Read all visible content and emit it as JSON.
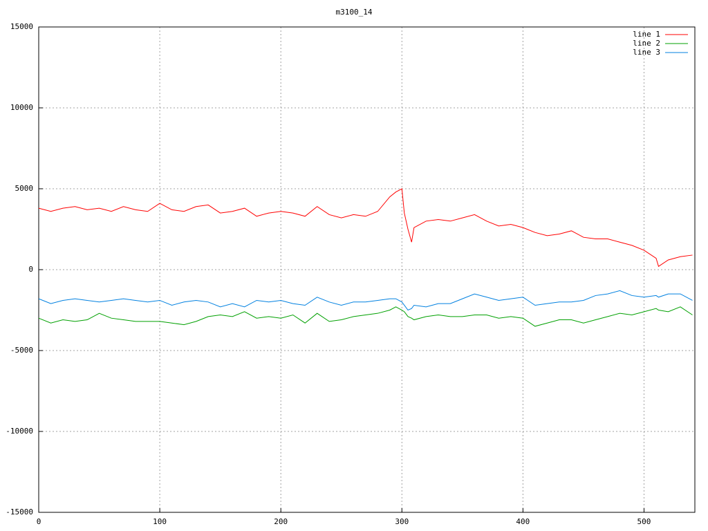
{
  "chart_data": {
    "type": "line",
    "title": "m3100_14",
    "x": [
      0,
      10,
      20,
      30,
      40,
      50,
      60,
      70,
      80,
      90,
      100,
      110,
      120,
      130,
      140,
      150,
      160,
      170,
      180,
      190,
      200,
      210,
      220,
      230,
      240,
      250,
      260,
      270,
      280,
      290,
      295,
      300,
      302,
      305,
      308,
      310,
      320,
      330,
      340,
      350,
      360,
      370,
      380,
      390,
      400,
      410,
      420,
      430,
      440,
      450,
      460,
      470,
      480,
      490,
      500,
      510,
      512,
      520,
      530,
      540
    ],
    "series": [
      {
        "name": "line 1",
        "color": "#ff0000",
        "values": [
          3800,
          3600,
          3800,
          3900,
          3700,
          3800,
          3600,
          3900,
          3700,
          3600,
          4100,
          3700,
          3600,
          3900,
          4000,
          3500,
          3600,
          3800,
          3300,
          3500,
          3600,
          3500,
          3300,
          3900,
          3400,
          3200,
          3400,
          3300,
          3600,
          4500,
          4800,
          5000,
          3500,
          2500,
          1700,
          2600,
          3000,
          3100,
          3000,
          3200,
          3400,
          3000,
          2700,
          2800,
          2600,
          2300,
          2100,
          2200,
          2400,
          2000,
          1900,
          1900,
          1700,
          1500,
          1200,
          700,
          200,
          600,
          800,
          900
        ]
      },
      {
        "name": "line 2",
        "color": "#00a000",
        "values": [
          -3000,
          -3300,
          -3100,
          -3200,
          -3100,
          -2700,
          -3000,
          -3100,
          -3200,
          -3200,
          -3200,
          -3300,
          -3400,
          -3200,
          -2900,
          -2800,
          -2900,
          -2600,
          -3000,
          -2900,
          -3000,
          -2800,
          -3300,
          -2700,
          -3200,
          -3100,
          -2900,
          -2800,
          -2700,
          -2500,
          -2300,
          -2500,
          -2600,
          -2900,
          -3000,
          -3100,
          -2900,
          -2800,
          -2900,
          -2900,
          -2800,
          -2800,
          -3000,
          -2900,
          -3000,
          -3500,
          -3300,
          -3100,
          -3100,
          -3300,
          -3100,
          -2900,
          -2700,
          -2800,
          -2600,
          -2400,
          -2500,
          -2600,
          -2300,
          -2800
        ]
      },
      {
        "name": "line 3",
        "color": "#0080e0",
        "values": [
          -1800,
          -2100,
          -1900,
          -1800,
          -1900,
          -2000,
          -1900,
          -1800,
          -1900,
          -2000,
          -1900,
          -2200,
          -2000,
          -1900,
          -2000,
          -2300,
          -2100,
          -2300,
          -1900,
          -2000,
          -1900,
          -2100,
          -2200,
          -1700,
          -2000,
          -2200,
          -2000,
          -2000,
          -1900,
          -1800,
          -1800,
          -2000,
          -2200,
          -2500,
          -2400,
          -2200,
          -2300,
          -2100,
          -2100,
          -1800,
          -1500,
          -1700,
          -1900,
          -1800,
          -1700,
          -2200,
          -2100,
          -2000,
          -2000,
          -1900,
          -1600,
          -1500,
          -1300,
          -1600,
          -1700,
          -1600,
          -1700,
          -1500,
          -1500,
          -1900
        ]
      }
    ],
    "xlim": [
      0,
      542
    ],
    "xticks": [
      0,
      100,
      200,
      300,
      400,
      500
    ],
    "ylim": [
      -15000,
      15000
    ],
    "yticks": [
      -15000,
      -10000,
      -5000,
      0,
      5000,
      10000,
      15000
    ],
    "grid": true,
    "legend": "top-right"
  }
}
